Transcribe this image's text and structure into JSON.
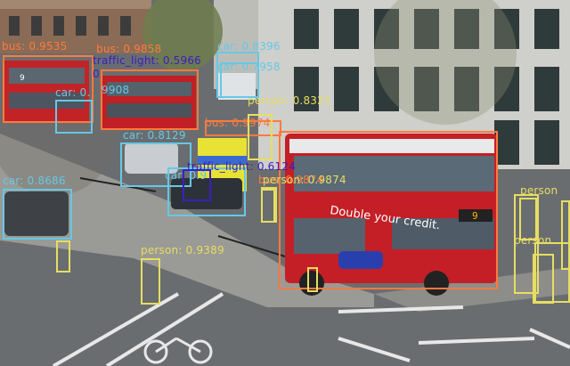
{
  "colors": {
    "bus": "#ff7a3d",
    "car": "#66c8e6",
    "person": "#e6de63",
    "traffic_light": "#3a1fc2"
  },
  "photo": {
    "bus_ad_text": "Double your credit.",
    "bus_route": "9",
    "left_bus_route": "9"
  },
  "detections": [
    {
      "label": "bus: 0.9535",
      "cls": "bus"
    },
    {
      "label": "bus: 0.9858",
      "cls": "bus"
    },
    {
      "label": "bus: 0.9874",
      "cls": "bus"
    },
    {
      "label": "bus: 0.9974",
      "cls": "bus"
    },
    {
      "label": "car: 0.8396",
      "cls": "car"
    },
    {
      "label": "car: 0.7958",
      "cls": "car"
    },
    {
      "label": "car: 0.",
      "cls": "car"
    },
    {
      "label": "car: 0.8129",
      "cls": "car"
    },
    {
      "label": "car: 0.8686",
      "cls": "car"
    },
    {
      "label": "car: 0.9",
      "cls": "car"
    },
    {
      "label": "9908",
      "cls": "car"
    },
    {
      "label": "traffic_light: 0.5966",
      "cls": "traffic_light"
    },
    {
      "label": "0",
      "cls": "traffic_light"
    },
    {
      "label": "traffic_light: 0.6124",
      "cls": "traffic_light"
    },
    {
      "label": "person: 0.8321",
      "cls": "person"
    },
    {
      "label": "person: 0.9874",
      "cls": "person"
    },
    {
      "label": "person: 0.9389",
      "cls": "person"
    },
    {
      "label": "person",
      "cls": "person"
    },
    {
      "label": "person",
      "cls": "person"
    }
  ]
}
